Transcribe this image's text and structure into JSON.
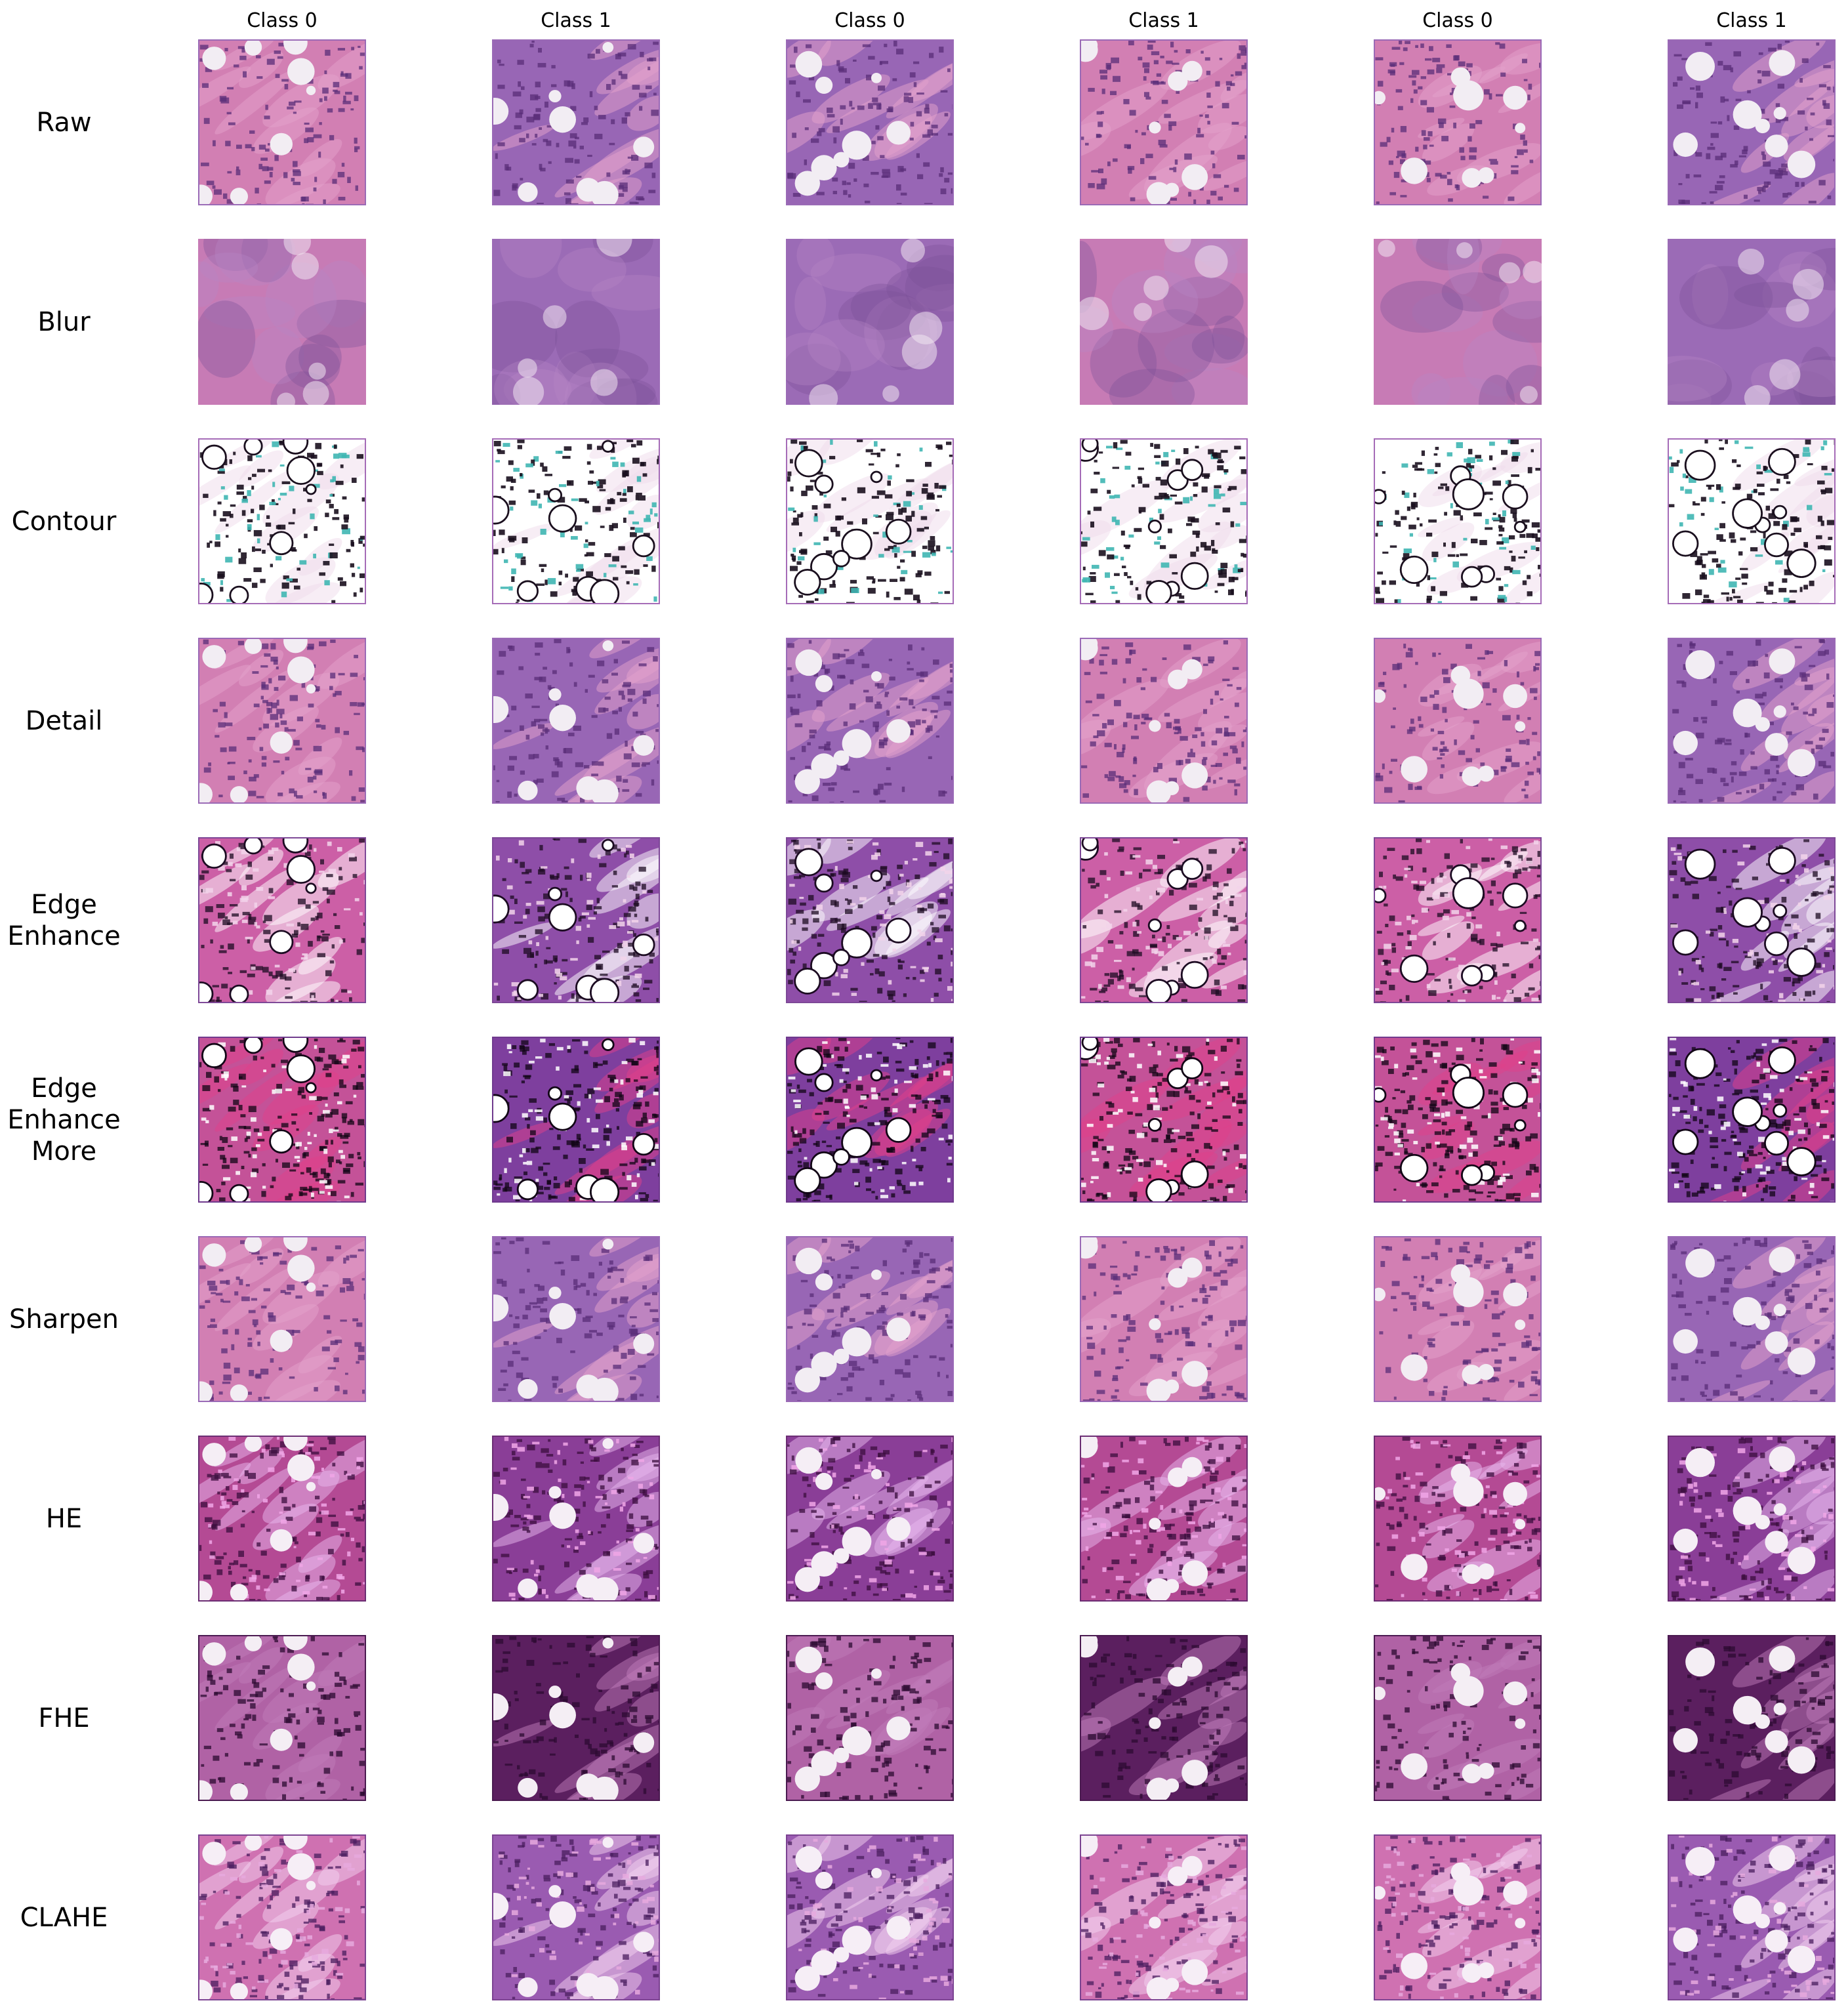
{
  "column_titles": [
    "Class 0",
    "Class 1",
    "Class 0",
    "Class 1",
    "Class 0",
    "Class 1"
  ],
  "rows": [
    {
      "key": "raw",
      "label_lines": [
        "Raw"
      ]
    },
    {
      "key": "blur",
      "label_lines": [
        "Blur"
      ]
    },
    {
      "key": "contour",
      "label_lines": [
        "Contour"
      ]
    },
    {
      "key": "detail",
      "label_lines": [
        "Detail"
      ]
    },
    {
      "key": "edge-enhance",
      "label_lines": [
        "Edge",
        "Enhance"
      ]
    },
    {
      "key": "edge-enhance-more",
      "label_lines": [
        "Edge",
        "Enhance",
        "More"
      ]
    },
    {
      "key": "sharpen",
      "label_lines": [
        "Sharpen"
      ]
    },
    {
      "key": "he",
      "label_lines": [
        "HE"
      ]
    },
    {
      "key": "fhe",
      "label_lines": [
        "FHE"
      ]
    },
    {
      "key": "clahe",
      "label_lines": [
        "CLAHE"
      ]
    }
  ],
  "colors": {
    "background": "#ffffff",
    "tissue_pink": "#d77fb2",
    "tissue_purple": "#8f5aa6",
    "nuclei_dark": "#4a2566",
    "fat_white": "#f3eef4",
    "contour_bg": "#ffffff",
    "contour_ink": "#1a0f1e",
    "contour_teal": "#3fb6b3"
  }
}
